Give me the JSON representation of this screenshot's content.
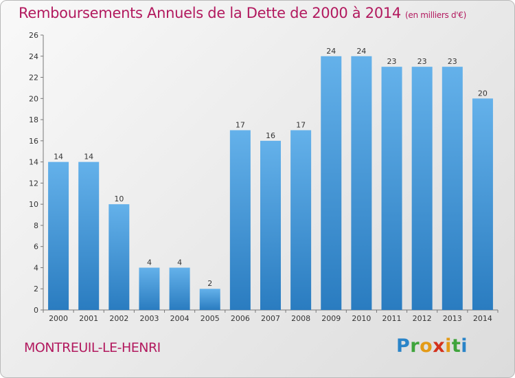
{
  "title": "Remboursements Annuels de la Dette de 2000 à 2014",
  "subtitle": "(en milliers d'€)",
  "town": "MONTREUIL-LE-HENRI",
  "logo": {
    "text": "Proxiti",
    "letters": [
      "P",
      "r",
      "o",
      "x",
      "i",
      "t",
      "i"
    ]
  },
  "colors": {
    "title": "#b2195e",
    "bar_light": "#64b1ea",
    "bar_dark": "#2a7cc0"
  },
  "chart_data": {
    "type": "bar",
    "title": "Remboursements Annuels de la Dette de 2000 à 2014",
    "subtitle": "(en milliers d'€)",
    "categories": [
      "2000",
      "2001",
      "2002",
      "2003",
      "2004",
      "2005",
      "2006",
      "2007",
      "2008",
      "2009",
      "2010",
      "2011",
      "2012",
      "2013",
      "2014"
    ],
    "values": [
      14,
      14,
      10,
      4,
      4,
      2,
      17,
      16,
      17,
      24,
      24,
      23,
      23,
      23,
      20
    ],
    "xlabel": "",
    "ylabel": "",
    "ylim": [
      0,
      26
    ],
    "yticks": [
      0,
      2,
      4,
      6,
      8,
      10,
      12,
      14,
      16,
      18,
      20,
      22,
      24,
      26
    ],
    "grid": false,
    "data_labels": true
  }
}
